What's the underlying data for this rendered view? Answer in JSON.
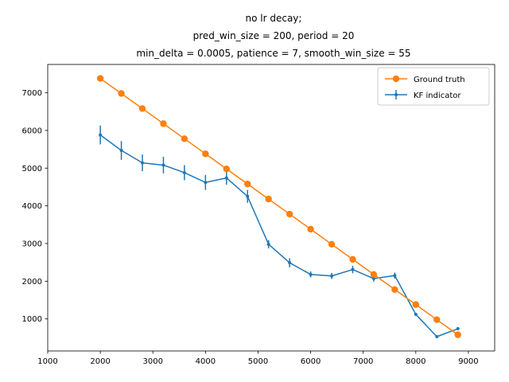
{
  "chart_data": {
    "type": "line",
    "title_lines": [
      "no lr decay;",
      "pred_win_size = 200, period = 20",
      "min_delta = 0.0005, patience = 7, smooth_win_size = 55"
    ],
    "xlabel": "",
    "ylabel": "",
    "xlim": [
      1000,
      9500
    ],
    "ylim": [
      150,
      7750
    ],
    "x_ticks": [
      1000,
      2000,
      3000,
      4000,
      5000,
      6000,
      7000,
      8000,
      9000
    ],
    "y_ticks": [
      1000,
      2000,
      3000,
      4000,
      5000,
      6000,
      7000
    ],
    "grid": false,
    "legend_position": "upper right",
    "series": [
      {
        "name": "Ground truth",
        "color": "#ff7f0e",
        "marker": "circle",
        "x": [
          2000,
          2400,
          2800,
          3200,
          3600,
          4000,
          4400,
          4800,
          5200,
          5600,
          6000,
          6400,
          6800,
          7200,
          7600,
          8000,
          8400,
          8800
        ],
        "y": [
          7380,
          6980,
          6580,
          6180,
          5780,
          5380,
          4980,
          4580,
          4180,
          3780,
          3380,
          2980,
          2580,
          2180,
          1780,
          1380,
          980,
          580
        ]
      },
      {
        "name": "KF indicator",
        "color": "#1f77b4",
        "marker": "point",
        "x": [
          2000,
          2400,
          2800,
          3200,
          3600,
          4000,
          4400,
          4800,
          5200,
          5600,
          6000,
          6400,
          6800,
          7200,
          7600,
          8000,
          8400,
          8800
        ],
        "y": [
          5880,
          5470,
          5140,
          5080,
          4880,
          4620,
          4740,
          4250,
          2980,
          2490,
          2180,
          2140,
          2310,
          2070,
          2150,
          1120,
          530,
          740
        ],
        "yerr": [
          250,
          250,
          220,
          220,
          200,
          200,
          180,
          170,
          110,
          120,
          80,
          80,
          100,
          80,
          80,
          0,
          0,
          0
        ]
      }
    ]
  }
}
